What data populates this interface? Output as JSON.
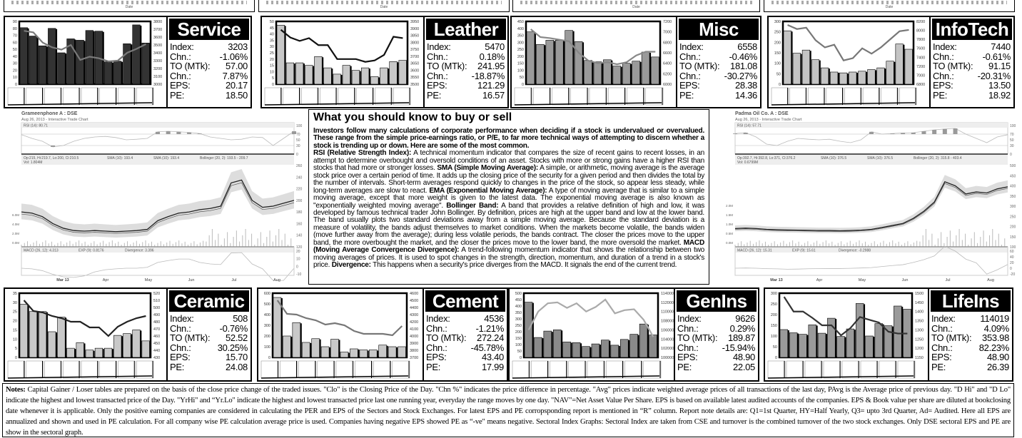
{
  "top_strip": {
    "date_label": "Date"
  },
  "sectors": [
    {
      "name": "Service",
      "index": "3203",
      "chn": "-1.06%",
      "to": "57.00",
      "to_chn": "7.87%",
      "eps": "20.17",
      "pe": "18.50",
      "bar_color": "#333333",
      "line_color": "#7a7a7a",
      "left_axis": [
        0,
        90,
        10
      ],
      "right_axis": [
        3000,
        3800,
        100
      ],
      "bars": [
        81,
        69,
        55,
        80,
        45,
        65,
        63,
        77,
        76,
        32,
        33,
        58,
        85,
        59
      ],
      "line": [
        3680,
        3660,
        3530,
        3470,
        3440,
        3500,
        3310,
        3350,
        3330,
        3290,
        3300,
        3400,
        3450,
        3510
      ]
    },
    {
      "name": "Leather",
      "index": "5470",
      "chn": "0.18%",
      "to": "241.95",
      "to_chn": "-18.87%",
      "eps": "121.29",
      "pe": "16.57",
      "bar_color": "#c8c8c8",
      "line_color": "#111111",
      "left_axis": [
        0,
        50,
        5
      ],
      "right_axis": [
        3500,
        3950,
        50
      ],
      "bars": [
        47,
        17,
        17,
        15,
        22,
        13,
        8,
        15,
        11,
        13,
        6,
        13,
        18,
        19
      ],
      "line": [
        3890,
        3835,
        3810,
        3830,
        3780,
        3780,
        3680,
        3680,
        3680,
        3660,
        3670,
        3710,
        3840,
        3830
      ]
    },
    {
      "name": "Misc",
      "index": "6558",
      "chn": "-0.46%",
      "to": "181.08",
      "to_chn": "-30.27%",
      "eps": "28.38",
      "pe": "14.36",
      "bar_color": "#9a9a9a",
      "line_color": "#888888",
      "left_axis": [
        0,
        450,
        50
      ],
      "right_axis": [
        6000,
        7200,
        200
      ],
      "bars": [
        375,
        285,
        315,
        315,
        385,
        305,
        170,
        160,
        175,
        130,
        150,
        165,
        230,
        195
      ],
      "line": [
        7050,
        6900,
        6880,
        6850,
        6820,
        6600,
        6450,
        6400,
        6420,
        6380,
        6420,
        6550,
        6620,
        6620
      ]
    },
    {
      "name": "InfoTech",
      "index": "7440",
      "chn": "-0.61%",
      "to": "91.15",
      "to_chn": "-20.31%",
      "eps": "13.50",
      "pe": "18.92",
      "bar_color": "#c4c4c4",
      "line_color": "#777777",
      "left_axis": [
        0,
        300,
        50
      ],
      "right_axis": [
        6800,
        8200,
        200
      ],
      "bars": [
        255,
        148,
        163,
        117,
        78,
        58,
        54,
        58,
        62,
        70,
        78,
        110,
        192,
        167
      ],
      "line": [
        8120,
        8030,
        8060,
        7780,
        7620,
        7680,
        7330,
        7380,
        7600,
        7480,
        7620,
        7800,
        7980,
        8010
      ]
    },
    {
      "name": "Ceramic",
      "index": "508",
      "chn": "-0.76%",
      "to": "52.52",
      "to_chn": "30.25%",
      "eps": "15.70",
      "pe": "24.08",
      "bar_color": "#c8c8c8",
      "line_color": "#222222",
      "left_axis": [
        0,
        35,
        5
      ],
      "right_axis": [
        430,
        520,
        10
      ],
      "bars": [
        29,
        25,
        25,
        14,
        22,
        5,
        8,
        4,
        5,
        5,
        12,
        13,
        15,
        9
      ],
      "line": [
        510,
        495,
        493,
        488,
        485,
        480,
        480,
        472,
        472,
        460,
        473,
        480,
        485,
        488
      ]
    },
    {
      "name": "Cement",
      "index": "4536",
      "chn": "-1.21%",
      "to": "272.24",
      "to_chn": "-45.78%",
      "eps": "43.40",
      "pe": "17.99",
      "bar_color": "#c8c8c8",
      "line_color": "#777777",
      "left_axis": [
        0,
        600,
        100
      ],
      "right_axis": [
        3700,
        4600,
        100
      ],
      "bars": [
        560,
        200,
        325,
        140,
        175,
        100,
        170,
        50,
        80,
        70,
        70,
        115,
        100,
        100
      ],
      "line": [
        4500,
        4310,
        4300,
        4250,
        4220,
        4160,
        4180,
        4150,
        4070,
        4030,
        4030,
        4030,
        4010,
        4140
      ]
    },
    {
      "name": "GenIns",
      "index": "9626",
      "chn": "0.29%",
      "to": "189.87",
      "to_chn": "-15.94%",
      "eps": "48.90",
      "pe": "22.05",
      "bar_color": "#8a8a8a",
      "line_color": "#aaaaaa",
      "left_axis": [
        0,
        500,
        50
      ],
      "right_axis": [
        100000,
        114000,
        2000
      ],
      "bars": [
        430,
        155,
        205,
        215,
        120,
        115,
        85,
        105,
        135,
        95,
        140,
        180,
        260,
        175
      ],
      "line": [
        106000,
        110000,
        111800,
        112000,
        110800,
        111800,
        110000,
        111000,
        112600,
        109600,
        110300,
        110500,
        108200,
        104500
      ]
    },
    {
      "name": "LifeIns",
      "index": "114019",
      "chn": "4.09%",
      "to": "353.98",
      "to_chn": "82.23%",
      "eps": "48.90",
      "pe": "26.39",
      "bar_color": "#9a9a9a",
      "line_color": "#333333",
      "left_axis": [
        0,
        300,
        50
      ],
      "right_axis": [
        1150,
        1500,
        50
      ],
      "bars": [
        130,
        115,
        108,
        152,
        113,
        183,
        98,
        133,
        252,
        100,
        158,
        148,
        240,
        225
      ],
      "line": [
        1480,
        1400,
        1400,
        1365,
        1325,
        1325,
        1270,
        1310,
        1370,
        1355,
        1340,
        1290,
        1280,
        1280
      ]
    }
  ],
  "stat_labels": {
    "index": "Index:",
    "chn": "Chn.:",
    "to": "TO (MTk):",
    "to_chn": "Chn.:",
    "eps": "EPS:",
    "pe": "PE:"
  },
  "stock_charts": [
    {
      "title": "Grameenphone A : DSE",
      "subtitle": "Aug 26, 2013 - Interactive Trade Chart",
      "rsi_label": "RSI (14): 80.71",
      "ohlc_label": "Op:215, Hi:219.7, Lo:200, Cl:210.5",
      "sma1_label": "SMA (10): 193.4",
      "sma2_label": "SMA (10): 193.4",
      "boll_label": "Bollinger (20, 2): 193.5 - 209.7",
      "vol_label": "Vol: 1.804M",
      "macd_label": "MACD (26, 12): 4.313",
      "exp_label": "EXP (9): 0.8176",
      "div_label": "Divergence: 3.396",
      "months": [
        "Mar 13",
        "Apr",
        "May",
        "Jun",
        "Jul",
        "Aug"
      ],
      "rsi_ticks": [
        "100",
        "70",
        "50",
        "30",
        "0"
      ],
      "price_ticks": [
        "260",
        "240",
        "220",
        "200",
        "180",
        "160",
        "140",
        "120"
      ],
      "price_range": [
        120,
        260
      ],
      "vol_ticks": [
        "6.0M",
        "4.0M",
        "2.0M",
        "0.0M"
      ],
      "macd_ticks": [
        "20",
        "10",
        "0",
        "-10"
      ],
      "close": [
        180,
        178,
        172,
        160,
        152,
        148,
        147,
        148,
        147,
        146,
        147,
        148,
        150,
        165,
        172,
        178,
        180,
        184,
        186,
        190,
        230,
        235,
        200,
        188,
        190,
        195,
        200
      ],
      "rsi": [
        68,
        55,
        45,
        25,
        30,
        45,
        55,
        60,
        62,
        58,
        50,
        52,
        55,
        78,
        80,
        78,
        76,
        72,
        60,
        55,
        50,
        52,
        60,
        58,
        30,
        55,
        80
      ]
    },
    {
      "title": "Padma Oil Co. A : DSE",
      "subtitle": "Aug 26, 2013 - Interactive Trade Chart",
      "rsi_label": "RSI (14): 57.71",
      "ohlc_label": "Op:392.7, Hi:392.8, Lo:371, Cl:376.2",
      "sma1_label": "SMA (10): 376.5",
      "sma2_label": "SMA (10): 376.5",
      "boll_label": "Bollinger (20, 2): 315.8 - 403.4",
      "vol_label": "Vol: 0.6799M",
      "macd_label": "MACD (26, 12): 15.31",
      "exp_label": "EXP (9): 15.61",
      "div_label": "Divergence: -0.2988",
      "months": [
        "Mar 13",
        "Apr",
        "May",
        "Jun",
        "Jul",
        "Aug"
      ],
      "rsi_ticks": [
        "100",
        "70",
        "50",
        "30",
        "0"
      ],
      "price_ticks": [
        "500",
        "450",
        "400",
        "350",
        "300",
        "250",
        "200",
        "150",
        "100"
      ],
      "price_range": [
        100,
        500
      ],
      "vol_ticks": [
        "2.0M",
        "1.5M",
        "1.0M",
        "0.5M",
        "0.0M"
      ],
      "macd_ticks": [
        "60",
        "40",
        "20",
        "0",
        "-20"
      ],
      "close": [
        190,
        192,
        190,
        186,
        184,
        183,
        182,
        181,
        180,
        180,
        179,
        180,
        182,
        186,
        195,
        205,
        215,
        240,
        275,
        320,
        420,
        400,
        360,
        370,
        365,
        385,
        395
      ],
      "rsi": [
        72,
        75,
        60,
        35,
        30,
        45,
        55,
        52,
        50,
        52,
        45,
        40,
        50,
        78,
        70,
        72,
        74,
        75,
        80,
        85,
        88,
        90,
        70,
        55,
        40,
        60,
        68
      ]
    }
  ],
  "article": {
    "title": "What you should know to buy or sell",
    "intro": "Investors follow many calculations of corporate performance when deciding if a stock is undervalued or overvalued.  These range from the simple price-earnings ratio, or P/E, to far more technical ways of attempting to discern whether a stock is trending up or down. Here are some of the most common.",
    "terms": [
      {
        "term": "RSI (Relative Strength Index):",
        "text": " A technical momentum indicator that compares the size of recent gains to recent losses, in an attempt to determine overbought and oversold conditions of an asset. Stocks with more or strong gains have a higher RSI than stocks that had more or stronger losses. "
      },
      {
        "term": "SMA (Simple Moving Average):",
        "text": " A simple, or arithmetic, moving average is the average stock price over a certain period of time. It adds up the closing price of the security for a given period and then divides the total by the number of intervals. Short-term averages respond quickly to changes in the price of the stock, so appear less steady, while long-term averages are slow to react. "
      },
      {
        "term": "EMA (Exponential Moving Average):",
        "text": " A type of moving average that is similar to a simple moving average, except that more weight is given to the latest data. The exponential moving average is also known as \"exponentially weighted moving average\". "
      },
      {
        "term": "Bollinger Band:",
        "text": " A band that provides a relative definition of high and low, it was developed by famous technical trader John Bollinger. By definition, prices are high at the upper band and low at the lower band. The band usually plots two standard deviations away from a simple moving average. Because the standard deviation is a measure of volatility, the bands adjust themselves to market conditions. When the markets become volatile, the bands widen (move further away from the average); during less volatile periods, the bands contract. The closer the prices move to the upper band, the more overbought the market, and the closer the prices move to the lower band, the more oversold the market. "
      },
      {
        "term": "MACD (Moving Average Convergence Divergence):",
        "text": " A trend-following momentum indicator that shows the relationship between two moving averages of prices. It is used to spot changes in the strength, direction, momentum, and duration of a trend in a stock's price. "
      },
      {
        "term": "Divergence:",
        "text": " This happens when a security's price diverges from the MACD. It signals the end of the current trend."
      }
    ]
  },
  "notes": {
    "label": "Notes:",
    "text": " Capital Gainer / Loser tables are prepared on the basis of the close price change of the traded issues.  \"Clo\"  is the Closing Price of the Day. \"Chn %\" indicates the price difference in percentage. \"Avg\" prices indicate weighted average prices of all transactions of the last day, PAvg is the Average price of previous day.  \"D Hi\" and \"D Lo\" indicate the highest and lowest transacted price of the Day.  \"YrHi\" and “Yr.Lo\" indicate the highest and lowest transacted price last one running year, everyday the range moves by one day. \"NAV\"=Net Asset Value Per Share. EPS is based on available latest audited accounts of the companies. EPS & Book value per share are diluted at bookclosing date whenever it is applicable. Only the positive earning companies are considered in calculating the PER and EPS of the Sectors and Stock Exchanges. For latest EPS and PE corropsponding report is mentioned in “R” column. Report note details are: Q1=1st Quarter, HY=Half Yearly, Q3= upto 3rd Quarter, Ad= Audited. Here all EPS are annualized and shown and used in PE calculation. For all company wise PE calculation average price is used. Companies having negative EPS showed PE as “-ve\" means negative. Sectoral Index Graphs: Sectoral Index are taken from CSE and turnover is the combined turnover of the two stock exchanges. Only DSE sectoral EPS and PE are show in the sectoral graph."
  }
}
